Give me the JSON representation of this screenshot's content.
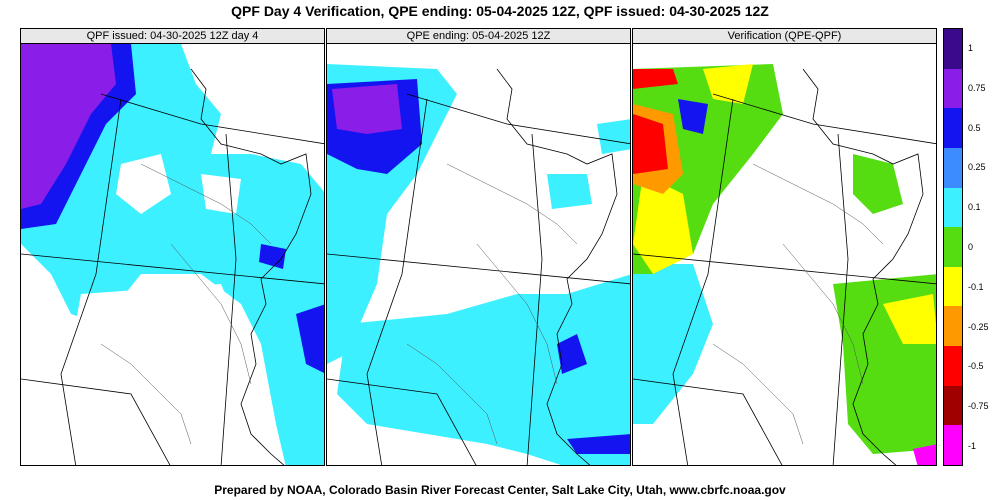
{
  "title": "QPF Day 4 Verification, QPE ending: 05-04-2025 12Z, QPF issued: 04-30-2025 12Z",
  "panels": [
    {
      "title": "QPF issued: 04-30-2025 12Z day 4"
    },
    {
      "title": "QPE ending: 05-04-2025 12Z"
    },
    {
      "title": "Verification (QPE-QPF)"
    }
  ],
  "colorbar": {
    "labels": [
      "1",
      "0.75",
      "0.5",
      "0.25",
      "0.1",
      "0",
      "-0.1",
      "-0.25",
      "-0.5",
      "-0.75",
      "-1"
    ],
    "colors": [
      "#3a0a8c",
      "#8a1ee8",
      "#1414f0",
      "#3c8cff",
      "#3cf0ff",
      "#55dd11",
      "#ffff00",
      "#ff9900",
      "#ff0000",
      "#a00000",
      "#ff00ff"
    ]
  },
  "footer": "Prepared by NOAA, Colorado Basin River Forecast Center, Salt Lake City, Utah, www.cbrfc.noaa.gov"
}
